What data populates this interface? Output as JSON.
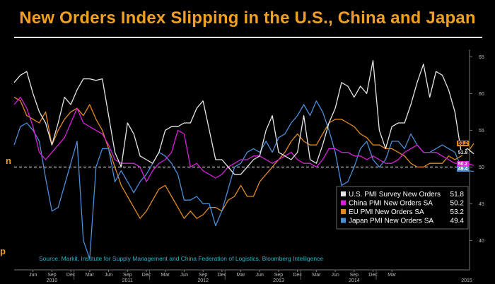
{
  "title": "New Orders Index Slipping in the U.S., China and Japan",
  "source": "Source: Markit, Institute for Supply Management and China Federation of Logistics, Bloomberg Intelligence",
  "side_fragments": {
    "left_top": "n",
    "left_bottom": "p"
  },
  "colors": {
    "us": "#E6E6E6",
    "china": "#D91FD9",
    "eu": "#E08A1E",
    "japan": "#4A8FD8",
    "reference": "#FFFFFF",
    "title": "#F0A020"
  },
  "chart_data": {
    "type": "line",
    "title": "New Orders Index Slipping in the U.S., China and Japan",
    "x_tick_labels": [
      "Jun",
      "Sep",
      "Dec",
      "Mar",
      "Jun",
      "Sep",
      "Dec",
      "Mar",
      "Jun",
      "Sep",
      "Dec",
      "Mar",
      "Jun",
      "Sep",
      "Dec",
      "Mar",
      "Jun",
      "Sep",
      "Dec",
      "Mar"
    ],
    "year_labels": [
      "2010",
      "2011",
      "2012",
      "2013",
      "2014",
      "2015"
    ],
    "ylim": [
      36,
      66
    ],
    "y_ticks": [
      40,
      45,
      50,
      55,
      60,
      65
    ],
    "reference_line": 50,
    "x_start": "Mar 2010",
    "x_end": "Mar 2015",
    "legend_position": "bottom-right",
    "series": [
      {
        "name": "U.S. PMI Survey New Orders",
        "last_value": "51.8",
        "values": [
          61.5,
          62.5,
          63.0,
          60.0,
          57.5,
          56.0,
          53.0,
          56.0,
          59.5,
          58.5,
          60.5,
          62.0,
          62.0,
          61.8,
          62.0,
          57.0,
          52.0,
          50.0,
          56.0,
          54.5,
          51.5,
          51.0,
          50.5,
          52.0,
          55.0,
          55.5,
          55.5,
          56.0,
          56.0,
          58.0,
          59.0,
          55.0,
          51.0,
          51.0,
          50.0,
          49.0,
          49.0,
          50.0,
          51.0,
          51.5,
          55.0,
          57.0,
          52.0,
          51.5,
          51.0,
          52.0,
          57.0,
          51.0,
          50.5,
          53.0,
          56.0,
          58.0,
          61.5,
          61.0,
          59.5,
          61.0,
          60.0,
          64.5,
          55.0,
          52.5,
          55.5,
          56.0,
          56.0,
          58.5,
          61.5,
          64.0,
          59.5,
          63.0,
          62.5,
          60.5,
          57.5,
          52.0,
          52.5,
          51.8
        ]
      },
      {
        "name": "China PMI New Orders SA",
        "last_value": "50.2",
        "values": [
          58.5,
          59.5,
          58.0,
          55.5,
          52.0,
          51.0,
          52.0,
          53.0,
          54.0,
          56.0,
          58.0,
          56.0,
          55.5,
          55.0,
          54.5,
          53.0,
          51.0,
          50.5,
          50.5,
          50.5,
          50.0,
          48.0,
          49.5,
          50.5,
          51.0,
          52.0,
          55.0,
          54.5,
          50.0,
          50.5,
          49.5,
          49.0,
          48.5,
          49.0,
          50.0,
          50.5,
          51.0,
          51.0,
          51.5,
          51.5,
          51.0,
          50.5,
          51.0,
          51.5,
          52.0,
          51.0,
          50.5,
          50.5,
          50.0,
          51.0,
          52.5,
          52.5,
          52.0,
          52.0,
          51.5,
          51.5,
          51.0,
          51.5,
          51.0,
          50.5,
          50.5,
          51.0,
          52.0,
          52.5,
          53.0,
          52.0,
          52.0,
          52.0,
          51.5,
          51.0,
          50.5,
          50.5,
          50.5,
          50.2
        ]
      },
      {
        "name": "EU PMI New Orders SA",
        "last_value": "53.2",
        "values": [
          59.5,
          59.0,
          57.0,
          56.5,
          56.0,
          57.5,
          53.0,
          55.0,
          56.5,
          57.5,
          58.0,
          57.0,
          58.5,
          56.5,
          55.0,
          52.5,
          50.0,
          47.5,
          46.0,
          44.5,
          43.0,
          44.0,
          45.5,
          47.0,
          47.5,
          46.0,
          44.5,
          43.0,
          44.0,
          43.0,
          43.5,
          44.5,
          44.5,
          44.0,
          45.5,
          46.0,
          47.5,
          46.0,
          46.0,
          48.0,
          49.0,
          50.0,
          51.0,
          52.0,
          53.5,
          54.5,
          53.5,
          53.0,
          53.0,
          54.5,
          56.0,
          56.5,
          56.5,
          56.0,
          55.5,
          54.5,
          54.0,
          53.0,
          53.0,
          52.5,
          52.5,
          52.0,
          51.5,
          50.5,
          50.0,
          50.0,
          50.5,
          50.5,
          50.5,
          51.5,
          51.0,
          51.5,
          52.0,
          53.2
        ]
      },
      {
        "name": "Japan PMI New Orders SA",
        "last_value": "49.4",
        "values": [
          53.0,
          55.5,
          56.0,
          55.0,
          53.5,
          48.5,
          44.0,
          44.5,
          47.5,
          50.5,
          53.5,
          40.0,
          37.5,
          50.0,
          52.5,
          52.5,
          48.0,
          49.5,
          48.0,
          46.5,
          48.0,
          49.0,
          50.5,
          52.0,
          51.5,
          50.5,
          49.0,
          45.5,
          45.5,
          46.0,
          45.0,
          45.0,
          42.0,
          44.0,
          47.0,
          50.0,
          50.5,
          52.0,
          52.5,
          52.0,
          53.5,
          52.0,
          54.0,
          54.5,
          56.0,
          57.0,
          58.5,
          57.0,
          59.0,
          57.5,
          55.0,
          52.0,
          47.5,
          48.0,
          50.0,
          52.5,
          53.5,
          51.0,
          50.0,
          51.0,
          53.5,
          53.5,
          52.5,
          54.5,
          53.0,
          52.0,
          52.0,
          52.5,
          53.0,
          52.5,
          52.0,
          50.0,
          49.5,
          49.4
        ]
      }
    ]
  }
}
